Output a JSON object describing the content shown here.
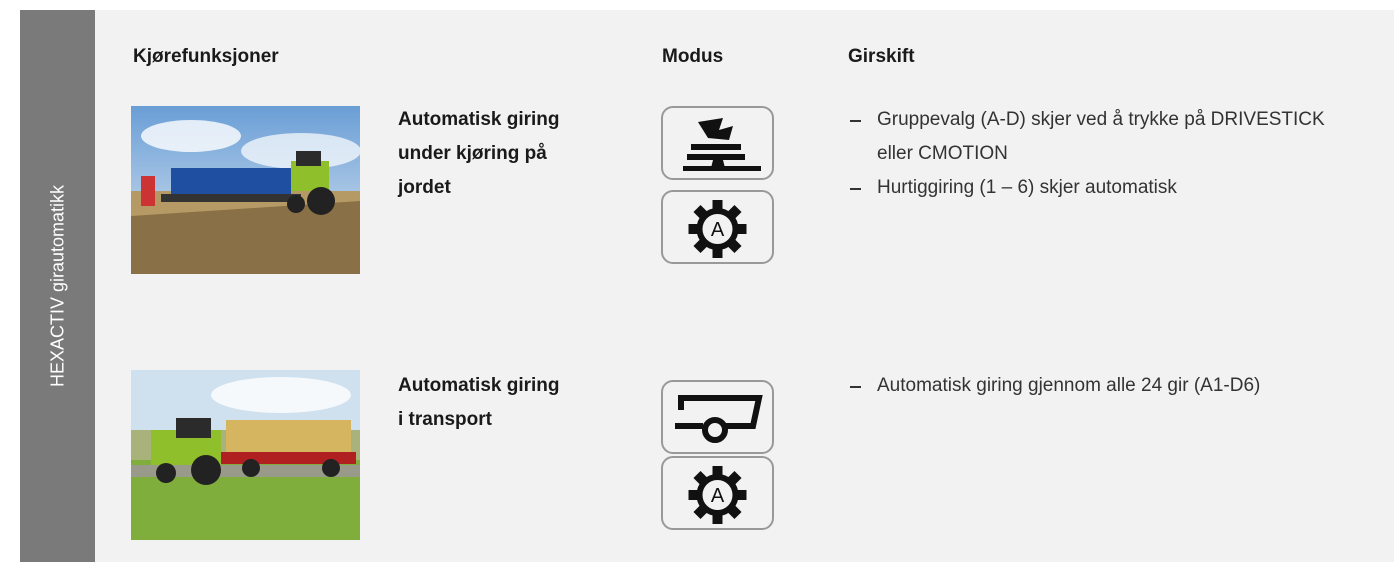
{
  "side_label": "HEXACTIV girautomatikk",
  "header": {
    "function": "Kjørefunksjoner",
    "mode": "Modus",
    "shift": "Girskift"
  },
  "rows": [
    {
      "title_lines": [
        "Automatisk giring",
        "under kjøring på",
        "jordet"
      ],
      "gear_label": "A",
      "bullets": [
        "Gruppevalg (A-D) skjer ved å trykke på DRIVESTICK eller CMOTION",
        "Hurtiggiring (1 – 6) skjer automatisk"
      ]
    },
    {
      "title_lines": [
        "Automatisk giring",
        "i transport"
      ],
      "gear_label": "A",
      "bullets": [
        "Automatisk giring gjennom alle 24 gir (A1-D6)"
      ]
    }
  ]
}
